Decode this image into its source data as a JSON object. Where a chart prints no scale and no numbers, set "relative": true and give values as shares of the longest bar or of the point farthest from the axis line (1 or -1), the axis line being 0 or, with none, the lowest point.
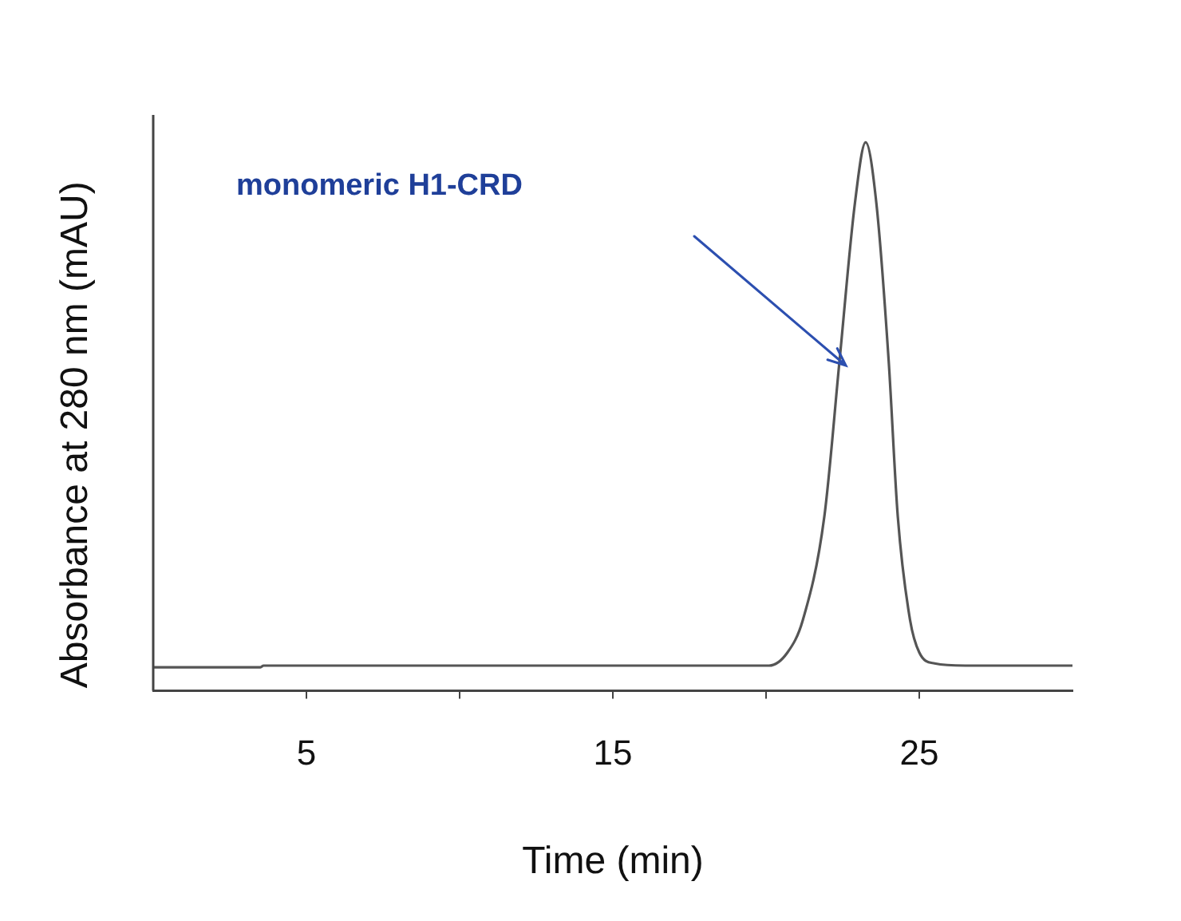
{
  "chart_data": {
    "type": "line",
    "xlabel": "Time (min)",
    "ylabel": "Absorbance at 280 nm (mAU)",
    "relative": true,
    "xlim": [
      0,
      30
    ],
    "xticks": [
      5,
      {
        "value": 10,
        "label": null
      },
      15,
      {
        "value": 20,
        "label": null
      },
      25
    ],
    "grid": false,
    "legend": false,
    "marker": "none",
    "line_style": "solid",
    "series": [
      {
        "color": "#555555",
        "x": [
          0,
          3.5,
          3.6,
          20.1,
          20.7,
          21.2,
          21.9,
          22.4,
          22.9,
          23.25,
          23.6,
          24,
          24.3,
          24.7,
          25,
          25.5,
          26.5,
          30
        ],
        "values": [
          0.043,
          0.043,
          0.046,
          0.046,
          0.07,
          0.129,
          0.317,
          0.603,
          0.889,
          1,
          0.889,
          0.603,
          0.317,
          0.129,
          0.07,
          0.05,
          0.046,
          0.046
        ]
      }
    ],
    "annotations": [
      "monomeric H1-CRD"
    ]
  }
}
